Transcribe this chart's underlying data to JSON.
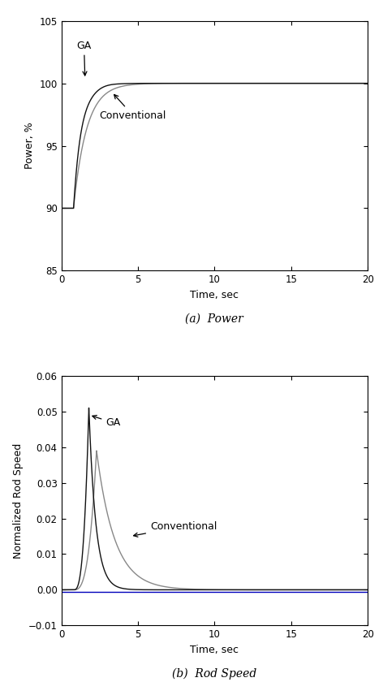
{
  "fig_width": 4.72,
  "fig_height": 8.56,
  "dpi": 100,
  "power_xlim": [
    0,
    20
  ],
  "power_ylim": [
    85,
    105
  ],
  "power_yticks": [
    85,
    90,
    95,
    100,
    105
  ],
  "power_xticks": [
    0,
    5,
    10,
    15,
    20
  ],
  "power_xlabel": "Time, sec",
  "power_ylabel": "Power, %",
  "power_caption": "(a)  Power",
  "rod_xlim": [
    0,
    20
  ],
  "rod_ylim": [
    -0.01,
    0.06
  ],
  "rod_yticks": [
    -0.01,
    0,
    0.01,
    0.02,
    0.03,
    0.04,
    0.05,
    0.06
  ],
  "rod_xticks": [
    0,
    5,
    10,
    15,
    20
  ],
  "rod_xlabel": "Time, sec",
  "rod_ylabel": "Normalized Rod Speed",
  "rod_caption": "(b)  Rod Speed",
  "ga_color": "#111111",
  "conv_color": "#888888",
  "blue_line_color": "#0000bb",
  "annotation_color": "#000000",
  "bg_color": "#ffffff"
}
